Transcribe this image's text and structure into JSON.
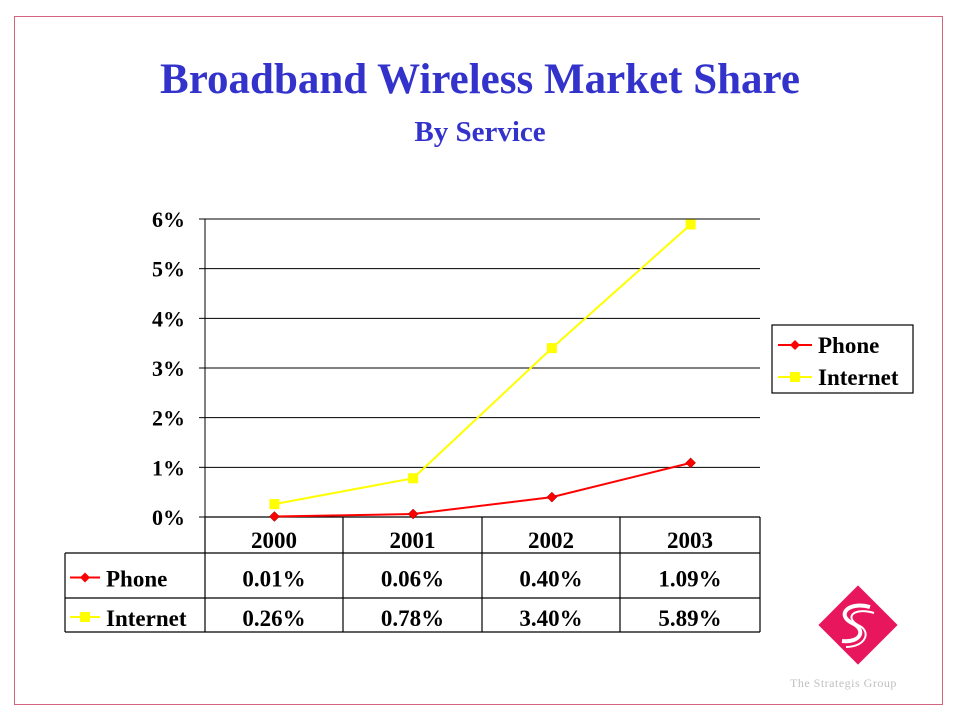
{
  "slide": {
    "title": "Broadband Wireless Market Share",
    "subtitle": "By Service",
    "logo_text": "The Strategis Group"
  },
  "colors": {
    "title": "#3333cc",
    "phone": "#ff0000",
    "internet": "#ffff00",
    "border": "#d4647e",
    "logo": "#e8175d"
  },
  "chart_data": {
    "type": "line",
    "categories": [
      "2000",
      "2001",
      "2002",
      "2003"
    ],
    "series": [
      {
        "name": "Phone",
        "values": [
          0.01,
          0.06,
          0.4,
          1.09
        ],
        "labels": [
          "0.01%",
          "0.06%",
          "0.40%",
          "1.09%"
        ],
        "marker": "diamond"
      },
      {
        "name": "Internet",
        "values": [
          0.26,
          0.78,
          3.4,
          5.89
        ],
        "labels": [
          "0.26%",
          "0.78%",
          "3.40%",
          "5.89%"
        ],
        "marker": "square"
      }
    ],
    "yticks": [
      "0%",
      "1%",
      "2%",
      "3%",
      "4%",
      "5%",
      "6%"
    ],
    "ylim": [
      0,
      6
    ],
    "grid": true,
    "legend": "right",
    "data_table": true
  }
}
